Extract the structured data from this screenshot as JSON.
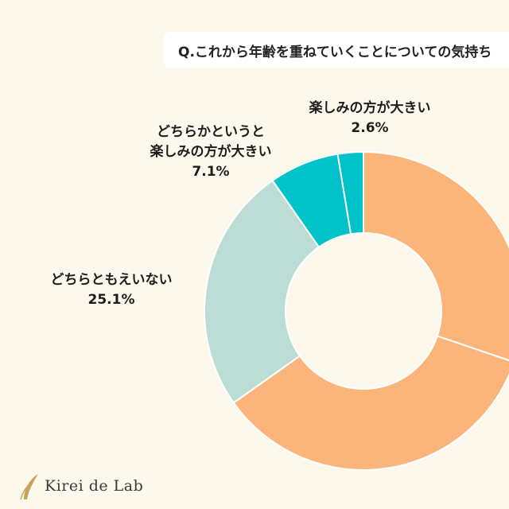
{
  "question": "Q.これから年齢を重ねていくことについての気持ち",
  "colors": {
    "background": "#fdf8ec",
    "slice_enjoy": "#00c2c9",
    "slice_rather_enjoy": "#00c2c9",
    "slice_neither": "#bcdcd6",
    "slice_rest": "#fbb57b"
  },
  "chart_data": {
    "type": "pie",
    "series": [
      {
        "values": [
          {
            "label": "楽しみの方が大きい",
            "value": 2.6,
            "display": "2.6%",
            "color": "#00c2c9"
          },
          {
            "label": "どちらかというと楽しみの方が大きい",
            "value": 7.1,
            "display": "7.1%",
            "color": "#00c2c9"
          },
          {
            "label": "どちらともえいない",
            "value": 25.1,
            "display": "25.1%",
            "color": "#bcdcd6"
          },
          {
            "label": "",
            "value": 35.0,
            "display": "",
            "color": "#fbb57b"
          },
          {
            "label": "",
            "value": 30.2,
            "display": "",
            "color": "#fbb57b"
          }
        ]
      }
    ]
  },
  "labels": {
    "enjoy": {
      "line1": "楽しみの方が大きい",
      "pct": "2.6%"
    },
    "rather_enjoy": {
      "line1": "どちらかというと",
      "line2": "楽しみの方が大きい",
      "pct": "7.1%"
    },
    "neither": {
      "line1": "どちらともえいない",
      "pct": "25.1%"
    }
  },
  "logo": {
    "text": "Kirei de Lab"
  }
}
